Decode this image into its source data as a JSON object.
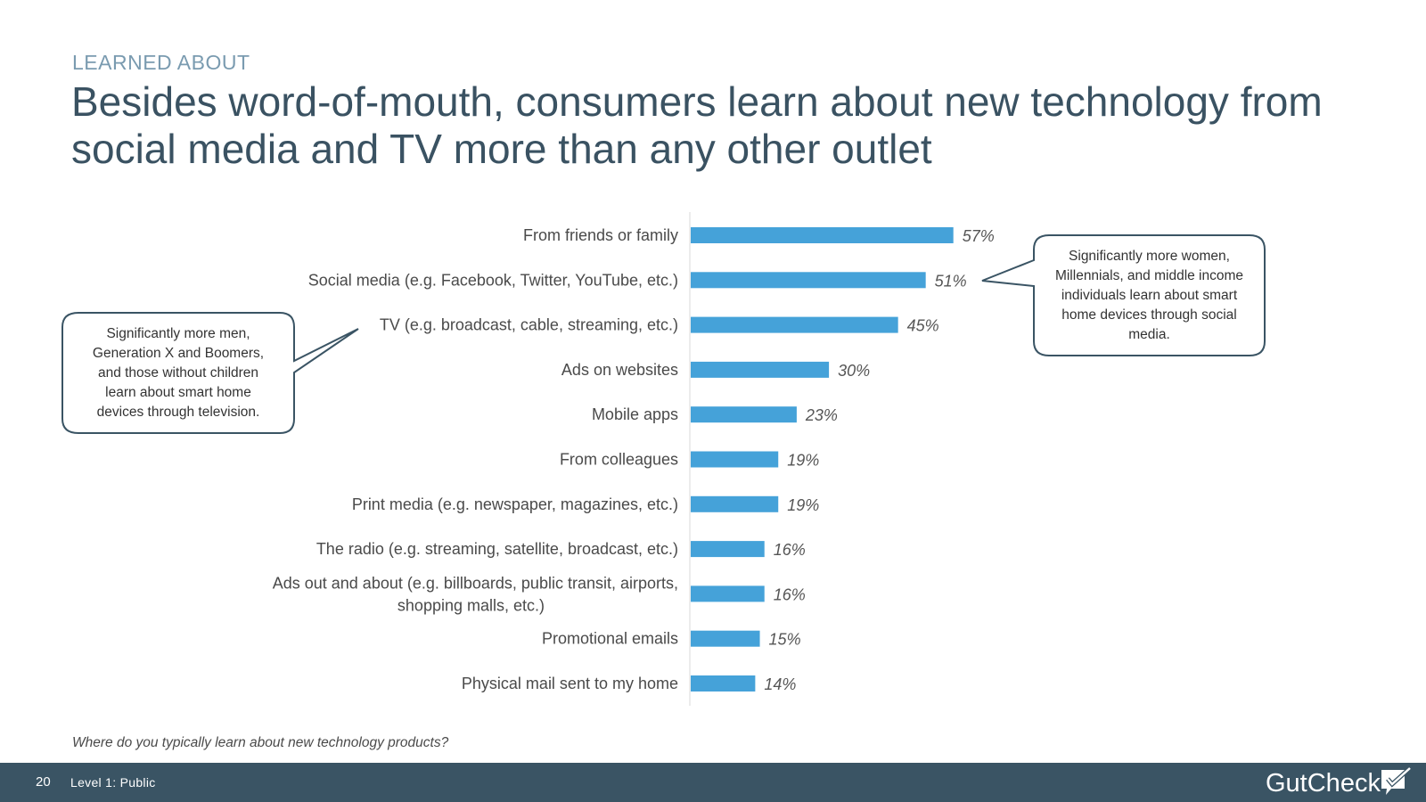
{
  "header": {
    "eyebrow": "LEARNED ABOUT",
    "title": "Besides word-of-mouth, consumers learn about new technology from social media and TV more than any other outlet"
  },
  "chart_data": {
    "type": "bar",
    "orientation": "horizontal",
    "categories": [
      "From friends or family",
      "Social media (e.g. Facebook, Twitter, YouTube, etc.)",
      "TV (e.g. broadcast, cable, streaming, etc.)",
      "Ads on websites",
      "Mobile apps",
      "From colleagues",
      "Print media (e.g. newspaper, magazines, etc.)",
      "The radio (e.g. streaming, satellite, broadcast, etc.)",
      "Ads out and about (e.g. billboards, public transit, airports, shopping malls, etc.)",
      "Promotional emails",
      "Physical mail sent to my home"
    ],
    "values": [
      57,
      51,
      45,
      30,
      23,
      19,
      19,
      16,
      16,
      15,
      14
    ],
    "value_labels": [
      "57%",
      "51%",
      "45%",
      "30%",
      "23%",
      "19%",
      "19%",
      "16%",
      "16%",
      "15%",
      "14%"
    ],
    "bar_color": "#45a2d9",
    "grid": false
  },
  "callouts": {
    "left": "Significantly more men, Generation X and Boomers, and those without children learn about smart home devices through television.",
    "right": "Significantly more women, Millennials, and middle income individuals learn about smart home devices through social media."
  },
  "question": "Where do you typically learn about new technology products?",
  "footer": {
    "page_number": "20",
    "level": "Level 1: Public",
    "logo": "GutCheck",
    "logo_icon": "checkmark-speech-bubble-icon"
  },
  "colors": {
    "title": "#3a5262",
    "eyebrow": "#7a9bb0",
    "footer_bg": "#3a5464"
  }
}
